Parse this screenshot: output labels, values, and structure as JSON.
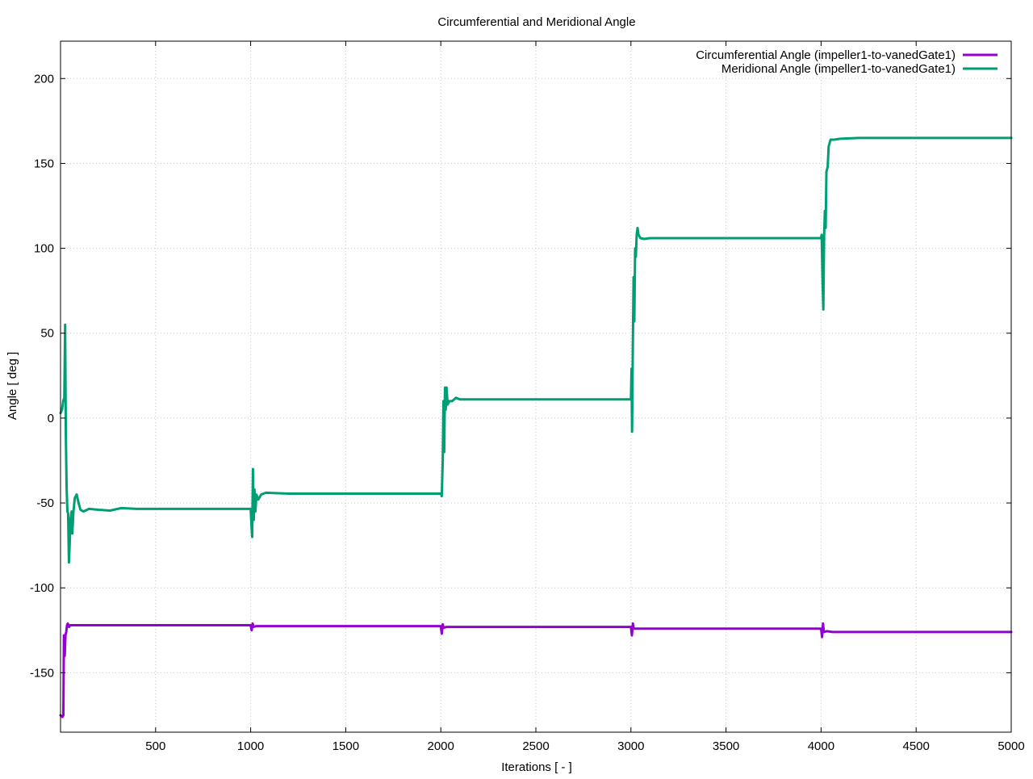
{
  "chart_data": {
    "type": "line",
    "title": "Circumferential and Meridional Angle",
    "xlabel": "Iterations [ - ]",
    "ylabel": "Angle [ deg ]",
    "xlim": [
      0,
      5000
    ],
    "ylim": [
      -185,
      222
    ],
    "xticks": [
      500,
      1000,
      1500,
      2000,
      2500,
      3000,
      3500,
      4000,
      4500,
      5000
    ],
    "yticks": [
      -150,
      -100,
      -50,
      0,
      50,
      100,
      150,
      200
    ],
    "grid": true,
    "legend_position": "top-right",
    "series": [
      {
        "name": "Circumferential Angle (impeller1-to-vanedGate1)",
        "color": "#9400d3",
        "points": [
          [
            0,
            -175
          ],
          [
            10,
            -176
          ],
          [
            15,
            -175
          ],
          [
            18,
            -128
          ],
          [
            22,
            -140
          ],
          [
            26,
            -128
          ],
          [
            30,
            -126
          ],
          [
            34,
            -122
          ],
          [
            38,
            -121
          ],
          [
            45,
            -123
          ],
          [
            50,
            -122
          ],
          [
            60,
            -122
          ],
          [
            200,
            -122
          ],
          [
            600,
            -122
          ],
          [
            1000,
            -122
          ],
          [
            1005,
            -125
          ],
          [
            1010,
            -121
          ],
          [
            1015,
            -123
          ],
          [
            1030,
            -122.5
          ],
          [
            1300,
            -122.5
          ],
          [
            1700,
            -122.5
          ],
          [
            2000,
            -122.5
          ],
          [
            2005,
            -127
          ],
          [
            2010,
            -121.5
          ],
          [
            2015,
            -123.5
          ],
          [
            2030,
            -123
          ],
          [
            2400,
            -123
          ],
          [
            3000,
            -123
          ],
          [
            3005,
            -128
          ],
          [
            3010,
            -121
          ],
          [
            3015,
            -124
          ],
          [
            3030,
            -124
          ],
          [
            3400,
            -124
          ],
          [
            4000,
            -124
          ],
          [
            4005,
            -129
          ],
          [
            4010,
            -121
          ],
          [
            4015,
            -126
          ],
          [
            4030,
            -125.5
          ],
          [
            4060,
            -126
          ],
          [
            4500,
            -126
          ],
          [
            5000,
            -126
          ]
        ]
      },
      {
        "name": "Meridional Angle (impeller1-to-vanedGate1)",
        "color": "#009e73",
        "points": [
          [
            0,
            3
          ],
          [
            8,
            5
          ],
          [
            14,
            10
          ],
          [
            20,
            12
          ],
          [
            24,
            55
          ],
          [
            28,
            -10
          ],
          [
            32,
            -40
          ],
          [
            36,
            -55
          ],
          [
            40,
            -56
          ],
          [
            44,
            -85
          ],
          [
            48,
            -75
          ],
          [
            52,
            -60
          ],
          [
            58,
            -55
          ],
          [
            62,
            -68
          ],
          [
            68,
            -55
          ],
          [
            75,
            -47
          ],
          [
            85,
            -45
          ],
          [
            95,
            -50
          ],
          [
            105,
            -54
          ],
          [
            120,
            -55
          ],
          [
            150,
            -53.5
          ],
          [
            200,
            -54
          ],
          [
            260,
            -54.5
          ],
          [
            320,
            -53
          ],
          [
            400,
            -53.5
          ],
          [
            600,
            -53.5
          ],
          [
            1000,
            -53.5
          ],
          [
            1005,
            -65
          ],
          [
            1008,
            -70
          ],
          [
            1012,
            -30
          ],
          [
            1016,
            -60
          ],
          [
            1020,
            -42
          ],
          [
            1025,
            -55
          ],
          [
            1030,
            -45
          ],
          [
            1040,
            -48
          ],
          [
            1055,
            -45
          ],
          [
            1080,
            -44
          ],
          [
            1200,
            -44.5
          ],
          [
            1600,
            -44.5
          ],
          [
            2000,
            -44.5
          ],
          [
            2005,
            -46
          ],
          [
            2010,
            -25
          ],
          [
            2014,
            10
          ],
          [
            2018,
            -20
          ],
          [
            2022,
            18
          ],
          [
            2026,
            5
          ],
          [
            2030,
            18
          ],
          [
            2036,
            8
          ],
          [
            2045,
            10
          ],
          [
            2060,
            10
          ],
          [
            2080,
            12
          ],
          [
            2100,
            11
          ],
          [
            2200,
            11
          ],
          [
            2600,
            11
          ],
          [
            3000,
            11
          ],
          [
            3003,
            29
          ],
          [
            3006,
            -8
          ],
          [
            3010,
            45
          ],
          [
            3014,
            83
          ],
          [
            3018,
            57
          ],
          [
            3022,
            100
          ],
          [
            3026,
            95
          ],
          [
            3030,
            108
          ],
          [
            3035,
            112
          ],
          [
            3040,
            108
          ],
          [
            3050,
            106
          ],
          [
            3070,
            105.5
          ],
          [
            3100,
            106
          ],
          [
            3200,
            106
          ],
          [
            3600,
            106
          ],
          [
            4000,
            106
          ],
          [
            4003,
            108
          ],
          [
            4008,
            80
          ],
          [
            4012,
            64
          ],
          [
            4016,
            108
          ],
          [
            4020,
            122
          ],
          [
            4024,
            112
          ],
          [
            4028,
            145
          ],
          [
            4035,
            148
          ],
          [
            4040,
            160
          ],
          [
            4050,
            164
          ],
          [
            4070,
            164
          ],
          [
            4100,
            164.5
          ],
          [
            4200,
            165
          ],
          [
            4600,
            165
          ],
          [
            5000,
            165
          ]
        ]
      }
    ]
  }
}
